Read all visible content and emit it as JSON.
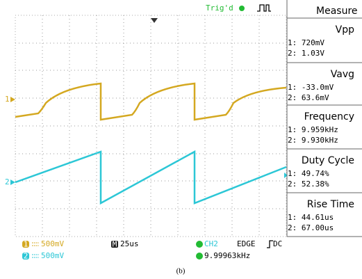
{
  "status": {
    "trigger": "Trig'd"
  },
  "measure": {
    "title": "Measure",
    "items": [
      {
        "name": "Vpp",
        "ch1": "1: 720mV",
        "ch2": "2: 1.03V"
      },
      {
        "name": "Vavg",
        "ch1": "1: -33.0mV",
        "ch2": "2: 63.6mV"
      },
      {
        "name": "Frequency",
        "ch1": "1: 9.959kHz",
        "ch2": "2: 9.930kHz"
      },
      {
        "name": "Duty Cycle",
        "ch1": "1: 49.74%",
        "ch2": "2: 52.38%"
      },
      {
        "name": "Rise Time",
        "ch1": "1: 44.61us",
        "ch2": "2: 67.00us"
      }
    ]
  },
  "markers": {
    "ch1": "1",
    "ch2": "2"
  },
  "footer": {
    "ch1_icon": "1",
    "ch1_scale": "500mV",
    "ch2_icon": "2",
    "ch2_scale": "500mV",
    "time_icon": "M",
    "timebase": "25us",
    "trigger_source": "CH2",
    "trigger_type": "EDGE",
    "coupling": "DC",
    "frequency": "9.99963kHz"
  },
  "caption": "(b)"
}
